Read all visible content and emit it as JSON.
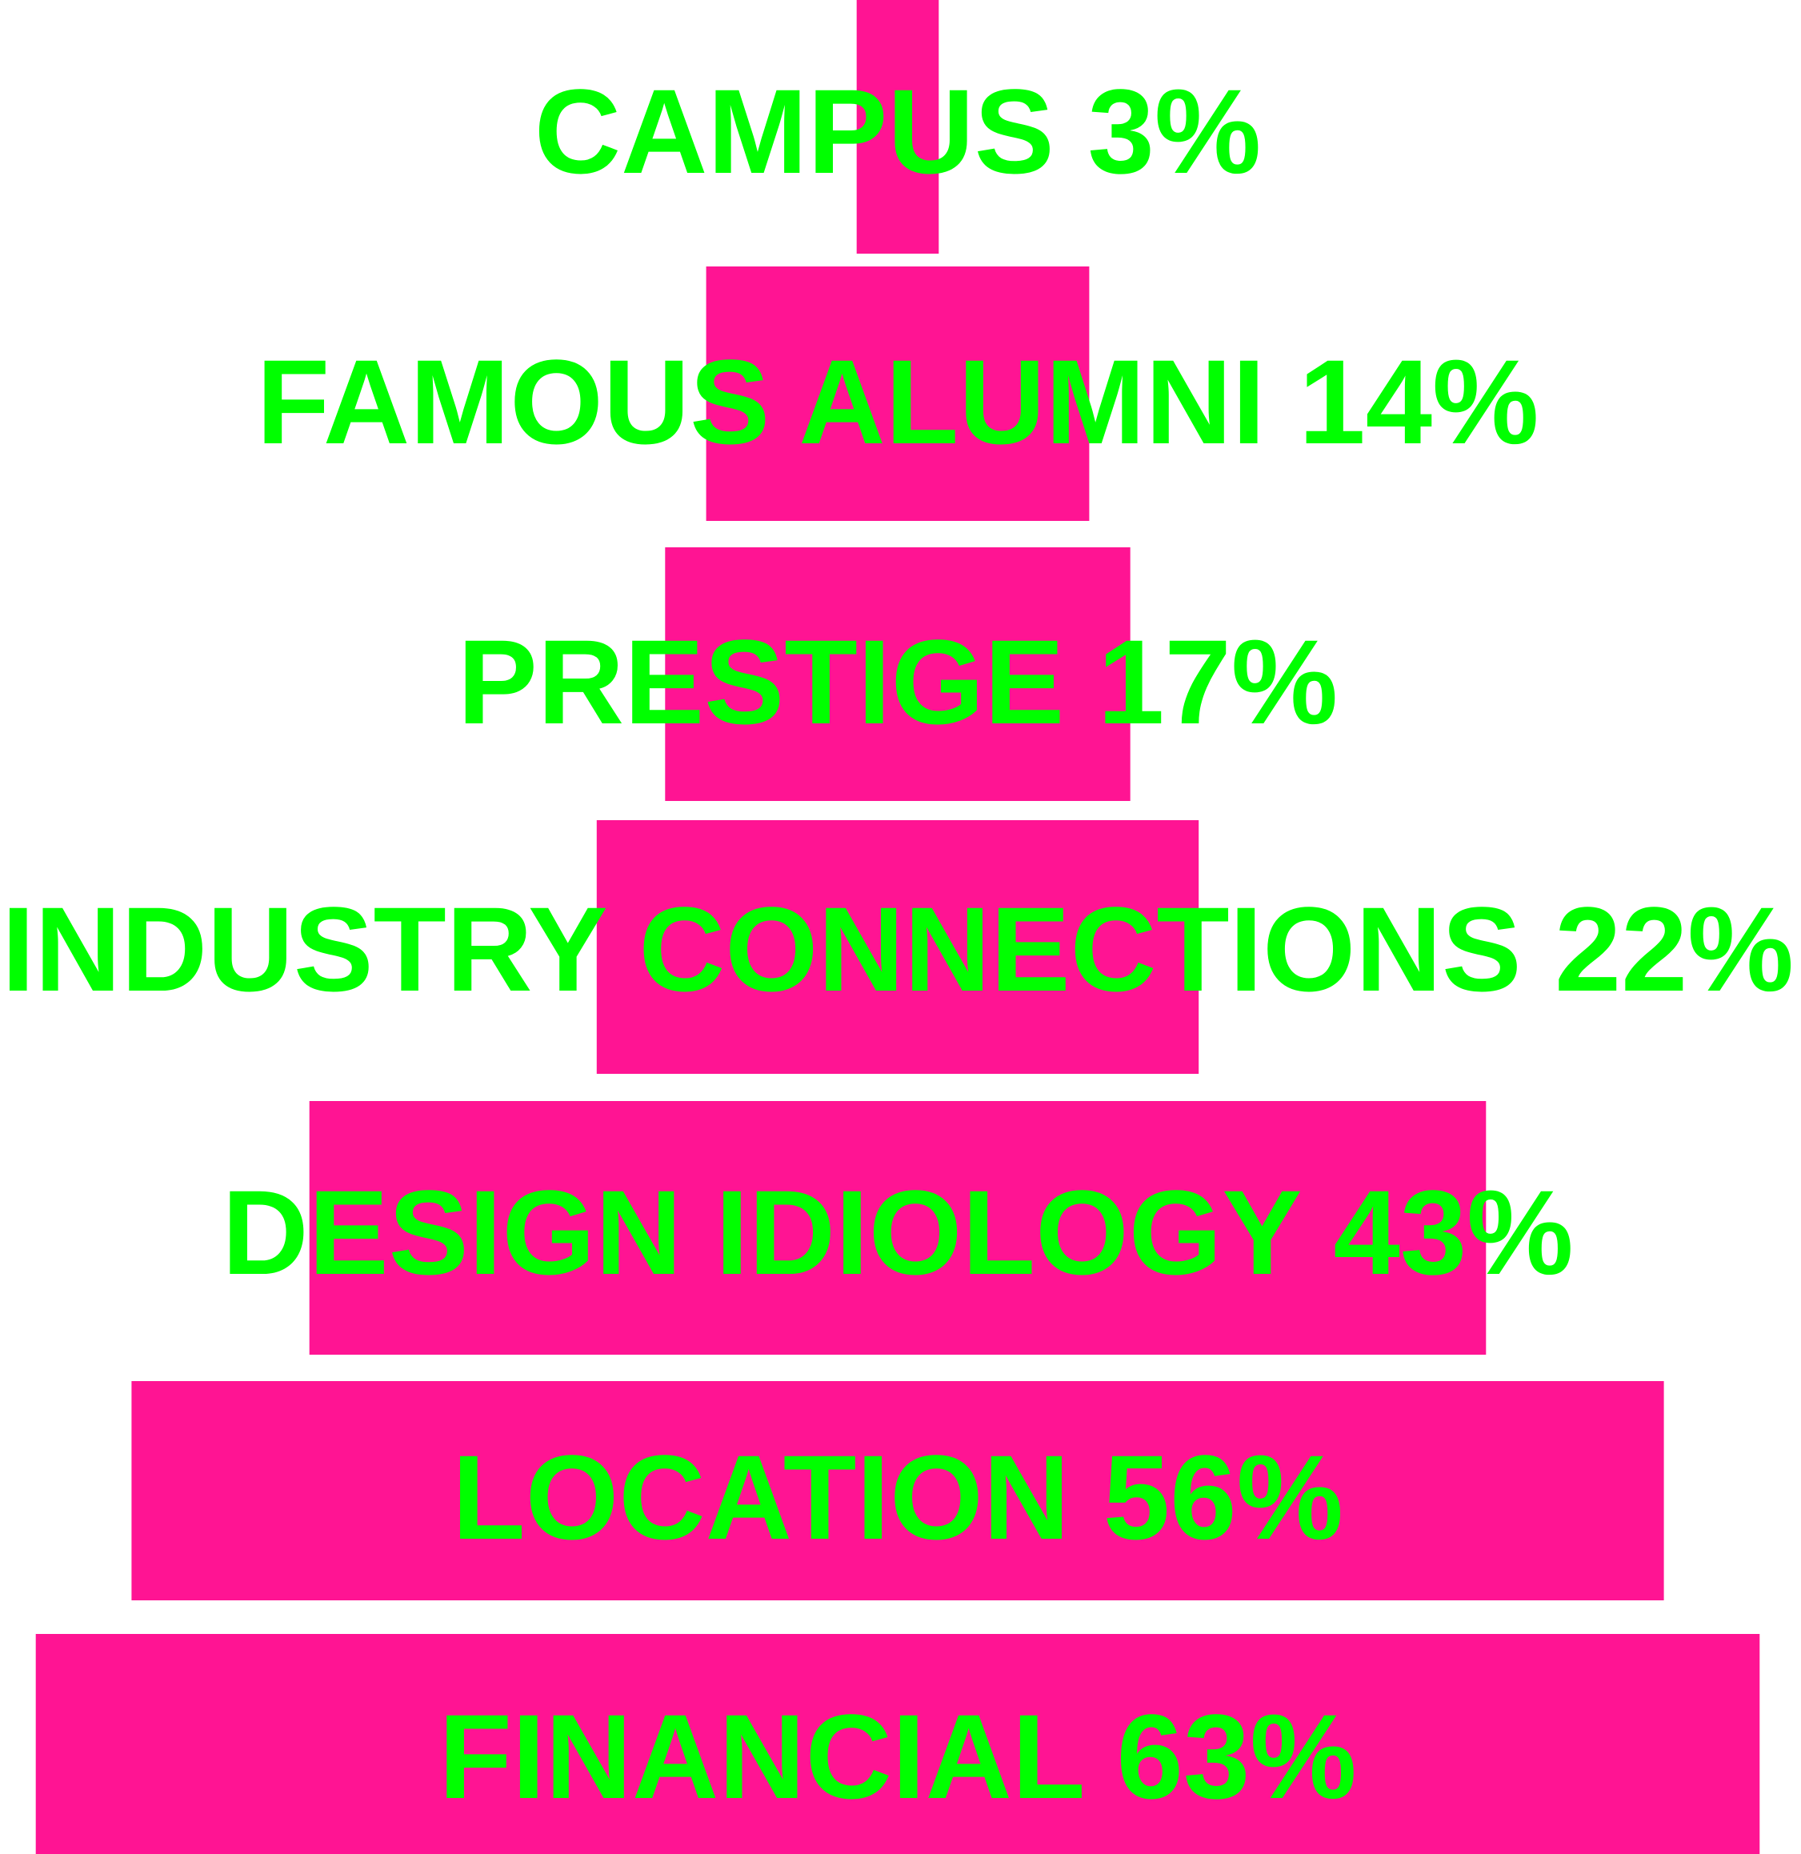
{
  "chart_data": {
    "type": "bar",
    "orientation": "horizontal-centered",
    "title": "",
    "xlabel": "",
    "ylabel": "",
    "categories": [
      "CAMPUS",
      "FAMOUS ALUMNI",
      "PRESTIGE",
      "INDUSTRY CONNECTIONS",
      "DESIGN IDIOLOGY",
      "LOCATION",
      "FINANCIAL"
    ],
    "values": [
      3,
      14,
      17,
      22,
      43,
      56,
      63
    ],
    "value_unit": "%",
    "labels": [
      "CAMPUS 3%",
      "FAMOUS ALUMNI 14%",
      "PRESTIGE 17%",
      "INDUSTRY CONNECTIONS 22%",
      "DESIGN IDIOLOGY 43%",
      "LOCATION 56%",
      "FINANCIAL 63%"
    ],
    "grid": false,
    "legend": "none",
    "colors": {
      "bar": "#ff1493",
      "label": "#00ff00",
      "background": "#ffffff"
    }
  }
}
